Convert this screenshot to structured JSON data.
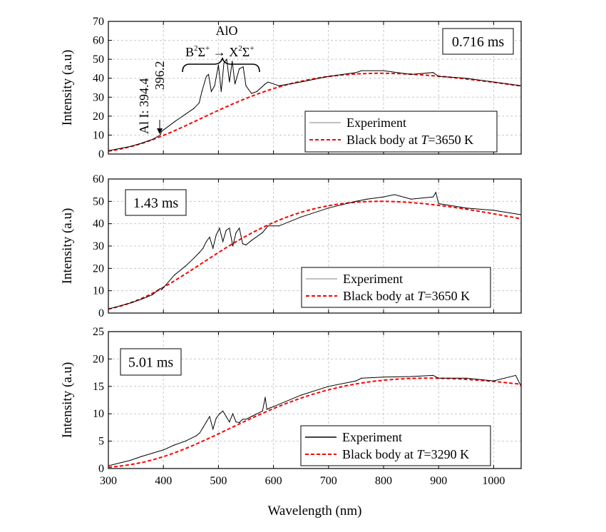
{
  "chart_data": [
    {
      "type": "line",
      "panel_label": "0.716 ms",
      "ylabel": "Intensity (a.u)",
      "xlabel": "",
      "xlim": [
        300,
        1050
      ],
      "ylim": [
        0,
        70
      ],
      "x_ticks": [],
      "y_ticks": [
        0,
        10,
        20,
        30,
        40,
        50,
        60,
        70
      ],
      "grid": true,
      "legend_position": "lower-right",
      "legend": {
        "experiment": "Experiment",
        "blackbody_prefix": "Black body at ",
        "blackbody_var": "T",
        "blackbody_suffix": "=3650  K"
      },
      "annotations": {
        "species": "AlO",
        "transition_upper": "B",
        "transition_lower": "X",
        "term_sup": "2",
        "term_sym": "Σ",
        "term_charge": "+",
        "arrow": "→",
        "line_label": "Al I: 394.4",
        "line_label_2": "396.2"
      },
      "blackbody_T": 3650,
      "bb_scale": 42.6,
      "series": [
        {
          "name": "Experiment",
          "color": "#000000",
          "x": [
            300,
            340,
            360,
            380,
            394,
            397,
            420,
            440,
            455,
            465,
            470,
            478,
            482,
            487,
            493,
            500,
            505,
            510,
            515,
            520,
            525,
            530,
            538,
            545,
            550,
            560,
            570,
            585,
            590,
            610,
            650,
            700,
            750,
            760,
            800,
            850,
            890,
            900,
            950,
            1000,
            1050
          ],
          "y": [
            1.8,
            4,
            5.7,
            7.7,
            10,
            12,
            17,
            21,
            24,
            27,
            33,
            41,
            42,
            33,
            36,
            47,
            33,
            48,
            50,
            38,
            49,
            37,
            45,
            46,
            36,
            32,
            33,
            37,
            38,
            36,
            38,
            41,
            43,
            44,
            44,
            42,
            43,
            41,
            40,
            38,
            36
          ]
        },
        {
          "name": "Black body at T=3650  K",
          "color": "#ff0000",
          "model": "planck"
        }
      ]
    },
    {
      "type": "line",
      "panel_label": "1.43 ms",
      "ylabel": "Intensity (a.u)",
      "xlabel": "",
      "xlim": [
        300,
        1050
      ],
      "ylim": [
        0,
        60
      ],
      "x_ticks": [],
      "y_ticks": [
        0,
        10,
        20,
        30,
        40,
        50,
        60
      ],
      "grid": true,
      "legend_position": "lower-right",
      "legend": {
        "experiment": "Experiment",
        "blackbody_prefix": "Black body at ",
        "blackbody_var": "T",
        "blackbody_suffix": "=3650  K"
      },
      "blackbody_T": 3650,
      "bb_scale": 50,
      "series": [
        {
          "name": "Experiment",
          "color": "#000000",
          "x": [
            300,
            340,
            360,
            380,
            394,
            397,
            420,
            440,
            455,
            465,
            472,
            478,
            484,
            490,
            496,
            502,
            508,
            514,
            520,
            526,
            532,
            538,
            544,
            550,
            560,
            580,
            590,
            610,
            650,
            700,
            750,
            770,
            800,
            820,
            850,
            890,
            895,
            900,
            950,
            1000,
            1050
          ],
          "y": [
            1.8,
            4.5,
            6.2,
            8.2,
            11,
            10.5,
            17,
            21,
            24.5,
            27,
            29,
            32,
            34,
            29,
            35,
            38,
            32,
            37,
            38,
            30,
            36,
            38,
            31,
            30.5,
            32.5,
            36,
            39,
            39,
            43,
            47,
            50,
            51,
            52,
            53,
            51,
            52,
            54,
            49,
            47,
            46,
            44
          ]
        },
        {
          "name": "Black body at T=3650  K",
          "color": "#ff0000",
          "model": "planck"
        }
      ]
    },
    {
      "type": "line",
      "panel_label": "5.01 ms",
      "ylabel": "Intensity (a.u)",
      "xlabel": "Wavelength (nm)",
      "xlim": [
        300,
        1050
      ],
      "ylim": [
        0,
        25
      ],
      "x_ticks": [
        300,
        400,
        500,
        600,
        700,
        800,
        900,
        1000
      ],
      "y_ticks": [
        0,
        5,
        10,
        15,
        20,
        25
      ],
      "grid": true,
      "legend_position": "lower-right",
      "legend": {
        "experiment": "Experiment",
        "blackbody_prefix": "Black body at ",
        "blackbody_var": "T",
        "blackbody_suffix": "=3290  K"
      },
      "blackbody_T": 3290,
      "bb_scale": 16.5,
      "series": [
        {
          "name": "Experiment",
          "color": "#000000",
          "x": [
            300,
            340,
            360,
            380,
            400,
            420,
            440,
            460,
            466,
            472,
            478,
            484,
            490,
            496,
            502,
            508,
            514,
            520,
            526,
            532,
            538,
            544,
            550,
            560,
            580,
            585,
            588,
            592,
            600,
            650,
            700,
            750,
            760,
            800,
            850,
            890,
            900,
            950,
            1000,
            1040,
            1050
          ],
          "y": [
            0.5,
            1.5,
            2.2,
            2.8,
            3.4,
            4.3,
            5,
            6,
            6.5,
            7.5,
            8.5,
            9.5,
            7.2,
            9.2,
            10,
            10.5,
            9.5,
            8.5,
            10,
            8.5,
            8.4,
            9,
            9,
            9.5,
            10.5,
            13,
            10.8,
            11,
            11.3,
            13.4,
            15,
            16,
            16.5,
            16.7,
            16.8,
            17,
            16.5,
            16.5,
            16,
            17,
            15
          ]
        },
        {
          "name": "Black body at T=3290  K",
          "color": "#ff0000",
          "model": "planck"
        }
      ]
    }
  ]
}
